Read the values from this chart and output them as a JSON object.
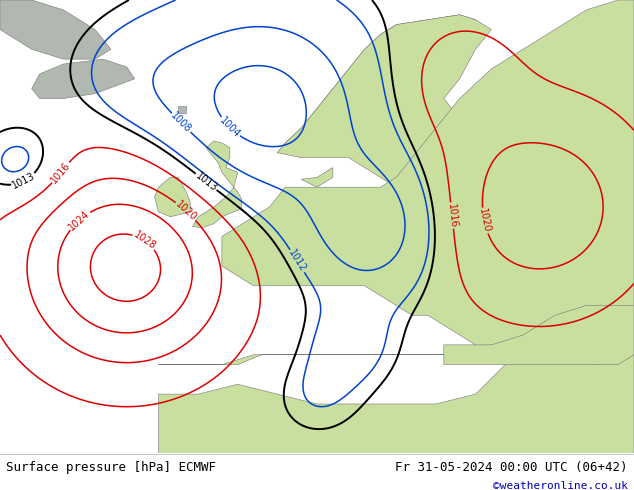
{
  "title_left": "Surface pressure [hPa] ECMWF",
  "title_right": "Fr 31-05-2024 00:00 UTC (06+42)",
  "copyright": "©weatheronline.co.uk",
  "bg_ocean": "#b8c8d8",
  "bg_land_green": "#c8dfa0",
  "bg_land_gray": "#b0b8b0",
  "contour_red_color": "#dd0000",
  "contour_blue_color": "#0044cc",
  "contour_black_color": "#000000",
  "label_fontsize": 7,
  "title_fontsize": 9,
  "copyright_color": "#0000bb",
  "fig_width": 6.34,
  "fig_height": 4.9,
  "dpi": 100,
  "xlim": [
    -30,
    50
  ],
  "ylim": [
    27,
    73
  ]
}
